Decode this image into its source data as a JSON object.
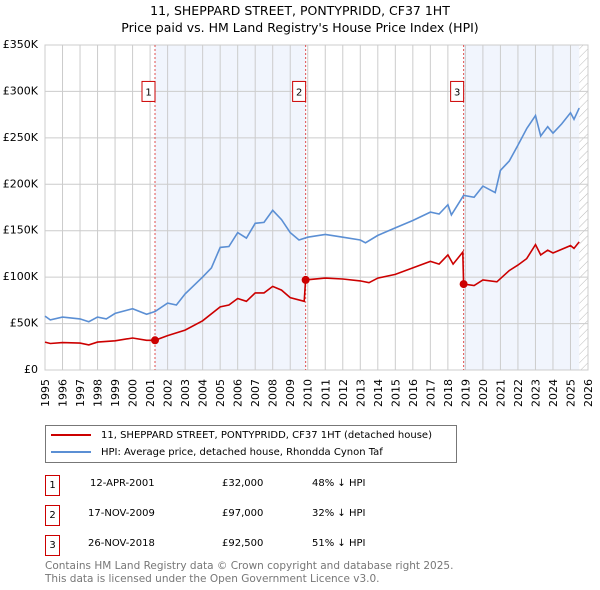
{
  "chart_data": {
    "type": "line",
    "title": "11, SHEPPARD STREET, PONTYPRIDD, CF37 1HT",
    "subtitle": "Price paid vs. HM Land Registry's House Price Index (HPI)",
    "xlim": [
      1995,
      2026
    ],
    "ylim": [
      0,
      350000
    ],
    "x_ticks": [
      "1995",
      "1996",
      "1997",
      "1998",
      "1999",
      "2000",
      "2001",
      "2002",
      "2003",
      "2004",
      "2005",
      "2006",
      "2007",
      "2008",
      "2009",
      "2010",
      "2011",
      "2012",
      "2013",
      "2014",
      "2015",
      "2016",
      "2017",
      "2018",
      "2019",
      "2020",
      "2021",
      "2022",
      "2023",
      "2024",
      "2025",
      "2026"
    ],
    "y_ticks": [
      {
        "v": 0,
        "label": "£0"
      },
      {
        "v": 50000,
        "label": "£50K"
      },
      {
        "v": 100000,
        "label": "£100K"
      },
      {
        "v": 150000,
        "label": "£150K"
      },
      {
        "v": 200000,
        "label": "£200K"
      },
      {
        "v": 250000,
        "label": "£250K"
      },
      {
        "v": 300000,
        "label": "£300K"
      },
      {
        "v": 350000,
        "label": "£350K"
      }
    ],
    "grid": true,
    "series": [
      {
        "name": "11, SHEPPARD STREET, PONTYPRIDD, CF37 1HT (detached house)",
        "color": "#cc0000",
        "x": [
          1995,
          1995.3,
          1996,
          1997,
          1997.5,
          1998,
          1999,
          2000,
          2000.8,
          2001.28,
          2002,
          2003,
          2004,
          2005,
          2005.5,
          2006,
          2006.5,
          2007,
          2007.5,
          2008,
          2008.5,
          2009,
          2009.8,
          2009.88,
          2011,
          2012,
          2013,
          2013.5,
          2014,
          2015,
          2016,
          2017,
          2017.5,
          2018,
          2018.3,
          2018.85,
          2018.9,
          2019.5,
          2020,
          2020.8,
          2021.5,
          2022,
          2022.5,
          2023,
          2023.3,
          2023.7,
          2024,
          2025,
          2025.2,
          2025.5
        ],
        "y": [
          30000,
          28500,
          29500,
          29000,
          27000,
          30000,
          31500,
          34500,
          32000,
          32000,
          37000,
          43000,
          53000,
          68000,
          70000,
          77000,
          74000,
          83000,
          83000,
          90000,
          86000,
          78000,
          74000,
          97000,
          99000,
          98000,
          96000,
          94000,
          99000,
          103000,
          110000,
          117000,
          114000,
          124000,
          114000,
          127000,
          92500,
          91000,
          97000,
          95000,
          107000,
          113000,
          120000,
          135000,
          124000,
          129000,
          126000,
          134000,
          131000,
          138000
        ]
      },
      {
        "name": "HPI: Average price, detached house, Rhondda Cynon Taf",
        "color": "#5b8fd4",
        "x": [
          1995,
          1995.3,
          1996,
          1997,
          1997.5,
          1998,
          1998.5,
          1999,
          2000,
          2000.8,
          2001.28,
          2002,
          2002.5,
          2003,
          2004,
          2004.5,
          2005,
          2005.5,
          2006,
          2006.5,
          2007,
          2007.5,
          2008,
          2008.5,
          2009,
          2009.5,
          2010,
          2011,
          2012,
          2013,
          2013.3,
          2014,
          2015,
          2016,
          2017,
          2017.5,
          2018,
          2018.2,
          2018.9,
          2019.5,
          2020,
          2020.7,
          2021,
          2021.5,
          2022,
          2022.5,
          2023,
          2023.3,
          2023.7,
          2024,
          2024.5,
          2025,
          2025.2,
          2025.5
        ],
        "y": [
          58000,
          54000,
          57000,
          55000,
          52000,
          57000,
          55000,
          61000,
          66000,
          60000,
          63000,
          72000,
          70000,
          82000,
          100000,
          110000,
          132000,
          133000,
          148000,
          142000,
          158000,
          159000,
          172000,
          162000,
          148000,
          140000,
          143000,
          146000,
          143000,
          140000,
          137000,
          145000,
          153000,
          161000,
          170000,
          168000,
          178000,
          167000,
          188000,
          186000,
          198000,
          191000,
          215000,
          225000,
          242000,
          260000,
          274000,
          252000,
          262000,
          255000,
          265000,
          277000,
          270000,
          282000
        ]
      }
    ],
    "markers": [
      {
        "label": "1",
        "x": 2001.28,
        "y": 32000
      },
      {
        "label": "2",
        "x": 2009.88,
        "y": 97000
      },
      {
        "label": "3",
        "x": 2018.9,
        "y": 92500
      }
    ],
    "shaded_ranges": [
      [
        2001.28,
        2009.88
      ],
      [
        2018.9,
        2025.5
      ]
    ],
    "projection_hatch_from": 2025.5
  },
  "legend": {
    "items": [
      "11, SHEPPARD STREET, PONTYPRIDD, CF37 1HT (detached house)",
      "HPI: Average price, detached house, Rhondda Cynon Taf"
    ]
  },
  "transactions": [
    {
      "num": "1",
      "date": "12-APR-2001",
      "price": "£32,000",
      "hpi": "48% ↓ HPI"
    },
    {
      "num": "2",
      "date": "17-NOV-2009",
      "price": "£97,000",
      "hpi": "32% ↓ HPI"
    },
    {
      "num": "3",
      "date": "26-NOV-2018",
      "price": "£92,500",
      "hpi": "51% ↓ HPI"
    }
  ],
  "footer": {
    "line1": "Contains HM Land Registry data © Crown copyright and database right 2025.",
    "line2": "This data is licensed under the Open Government Licence v3.0."
  }
}
